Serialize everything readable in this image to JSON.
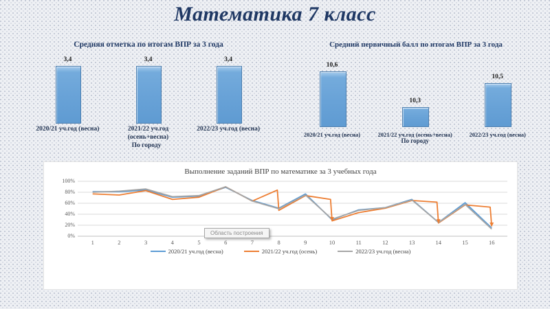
{
  "slide": {
    "title": "Математика 7 класс"
  },
  "colors": {
    "title_navy": "#1F3864",
    "bar_fill": "#6FA8DC",
    "bar_border": "#4a7dae",
    "series_blue": "#5B9BD5",
    "series_orange": "#ED7D31",
    "series_gray": "#A5A5A5",
    "gridline": "#D9D9D9",
    "axis_line": "#BFBFBF"
  },
  "chart_data": [
    {
      "type": "bar",
      "title": "Средняя отметка по итогам ВПР за 3 года",
      "footer": "По городу",
      "categories": [
        "2020/21 уч.год (весна)",
        "2021/22 уч.год (осень+весна)",
        "2022/23 уч.год (весна)"
      ],
      "category_lines": [
        [
          "2020/21 уч.год (весна)"
        ],
        [
          "2021/22 уч.год",
          "(осень+весна)"
        ],
        [
          "2022/23 уч.год (весна)"
        ]
      ],
      "values": [
        3.4,
        3.4,
        3.4
      ],
      "value_labels": [
        "3,4",
        "3,4",
        "3,4"
      ],
      "ylim": [
        0,
        3.4
      ]
    },
    {
      "type": "bar",
      "title": "Средний первичный балл по итогам ВПР за 3 года",
      "footer": "По городу",
      "categories": [
        "2020/21 уч.год (весна)",
        "2021/22 уч.год (осень+весна)",
        "2022/23 уч.год (весна)"
      ],
      "category_lines": [
        [
          "2020/21 уч.год (весна)"
        ],
        [
          "2021/22 уч.год (осень+весна)"
        ],
        [
          "2022/23 уч.год (весна)"
        ]
      ],
      "values": [
        10.6,
        10.3,
        10.5
      ],
      "value_labels": [
        "10,6",
        "10,3",
        "10,5"
      ],
      "ylim": [
        10.1,
        10.6
      ]
    },
    {
      "type": "line",
      "title": "Выполнение заданий ВПР по математике за 3 учебных года",
      "plot_area_tooltip": "Область построения",
      "x": [
        1,
        2,
        3,
        4,
        5,
        6,
        7,
        8,
        9,
        10,
        11,
        12,
        13,
        14,
        15,
        16
      ],
      "ylim": [
        0,
        100
      ],
      "ytick_labels": [
        "100%",
        "80%",
        "60%",
        "40%",
        "20%",
        "0%"
      ],
      "grid": "horizontal",
      "legend_position": "bottom",
      "series": [
        {
          "name": "2020/21 уч.год (весна)",
          "color": "#5B9BD5",
          "values": [
            81,
            81,
            84,
            71,
            73,
            89,
            65,
            51,
            77,
            30,
            48,
            52,
            67,
            25,
            61,
            15
          ]
        },
        {
          "name": "2021/22 уч.год (осень)",
          "color": "#ED7D31",
          "values": [
            77,
            75,
            83,
            67,
            71,
            90,
            64,
            47,
            74,
            28,
            43,
            51,
            65,
            24,
            57,
            18
          ],
          "spikes": [
            {
              "before": 8,
              "top": 84,
              "arrow": false
            },
            {
              "before": 10,
              "top": 67,
              "arrow": true
            },
            {
              "before": 14,
              "top": 62,
              "arrow": true
            },
            {
              "before": 16,
              "top": 53,
              "arrow": true
            }
          ]
        },
        {
          "name": "2022/23 уч.год (весна)",
          "color": "#A5A5A5",
          "values": [
            80,
            82,
            86,
            72,
            74,
            90,
            64,
            50,
            75,
            31,
            47,
            52,
            66,
            25,
            58,
            13
          ]
        }
      ]
    }
  ]
}
